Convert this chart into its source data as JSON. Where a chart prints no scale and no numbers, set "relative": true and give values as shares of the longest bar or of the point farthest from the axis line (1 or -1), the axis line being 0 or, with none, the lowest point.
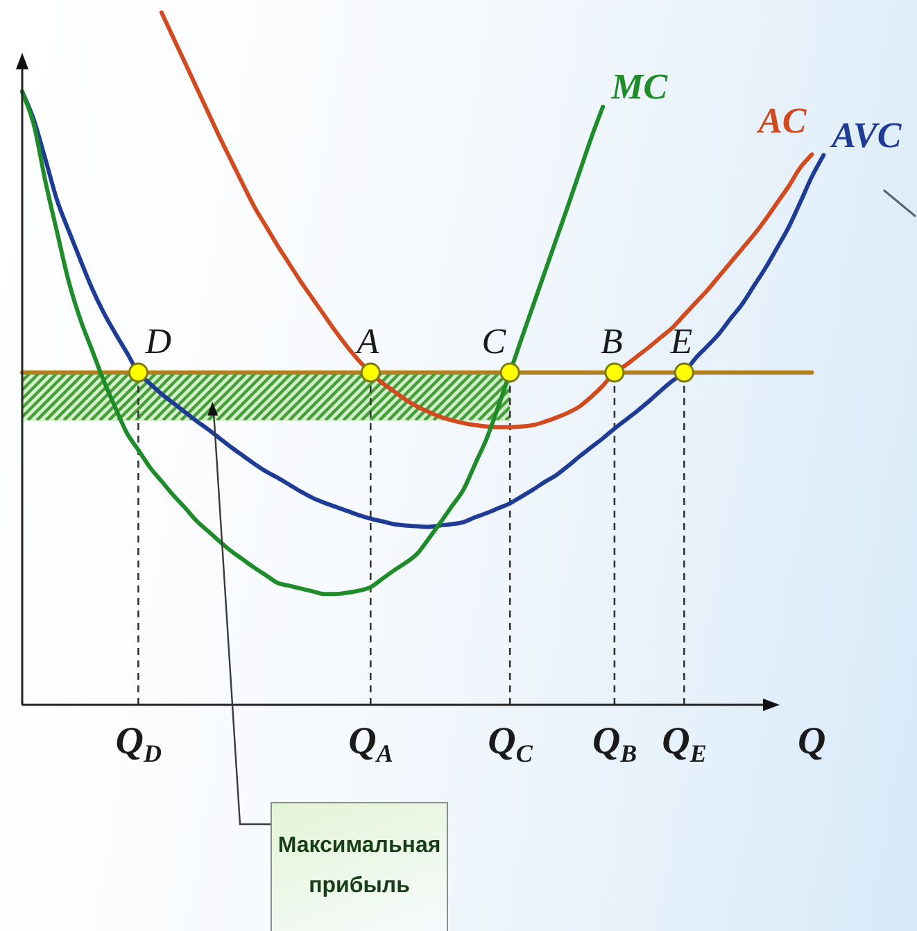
{
  "chart_data": {
    "type": "line",
    "relative": true,
    "legend": false,
    "xlabel": "Q",
    "categories": [
      null,
      null,
      null,
      null,
      null,
      null,
      null,
      null,
      null,
      null,
      "Q$_{D}$",
      null,
      null,
      null,
      null,
      null,
      null,
      null,
      null,
      null,
      null,
      null,
      null,
      null,
      null,
      null,
      null,
      null,
      null,
      null,
      "Q$_{A}$",
      null,
      null,
      null,
      null,
      null,
      null,
      null,
      null,
      null,
      null,
      null,
      "Q$_{C}$",
      null,
      null,
      null,
      null,
      null,
      null,
      null,
      null,
      "Q$_{B}$",
      null,
      null,
      null,
      null,
      null,
      "Q$_{E}$",
      null,
      null,
      null,
      null,
      null,
      null,
      null,
      null,
      null,
      null,
      null,
      null,
      null
    ],
    "series": [
      {
        "name": "MC",
        "color": "#1e8c28",
        "values": [
          0.886,
          0.838,
          0.756,
          0.683,
          0.612,
          0.557,
          0.513,
          0.469,
          0.43,
          0.393,
          0.368,
          0.343,
          0.323,
          0.303,
          0.285,
          0.266,
          0.251,
          0.236,
          0.222,
          0.21,
          0.198,
          0.187,
          0.176,
          0.172,
          0.168,
          0.164,
          0.16,
          0.16,
          0.162,
          0.165,
          0.17,
          0.182,
          0.194,
          0.205,
          0.218,
          0.24,
          0.263,
          0.287,
          0.311,
          0.348,
          0.385,
          0.431,
          0.48,
          0.529,
          0.577,
          0.625,
          0.673,
          0.721,
          0.77,
          0.819,
          0.864,
          null,
          null,
          null,
          null,
          null,
          null,
          null,
          null,
          null,
          null,
          null,
          null,
          null,
          null,
          null,
          null,
          null,
          null,
          null,
          null
        ]
      },
      {
        "name": "AC",
        "color": "#d24a1e",
        "values": [
          null,
          null,
          null,
          null,
          null,
          null,
          null,
          null,
          null,
          null,
          null,
          null,
          1.0,
          0.964,
          0.928,
          0.892,
          0.856,
          0.82,
          0.786,
          0.752,
          0.719,
          0.691,
          0.663,
          0.637,
          0.611,
          0.587,
          0.563,
          0.539,
          0.517,
          0.497,
          0.48,
          0.465,
          0.453,
          0.441,
          0.431,
          0.423,
          0.416,
          0.411,
          0.407,
          0.404,
          0.402,
          0.401,
          0.401,
          0.402,
          0.404,
          0.409,
          0.415,
          0.422,
          0.431,
          0.445,
          0.461,
          0.48,
          0.491,
          0.504,
          0.517,
          0.531,
          0.545,
          0.563,
          0.581,
          0.599,
          0.619,
          0.639,
          0.659,
          0.679,
          0.701,
          0.725,
          0.749,
          0.776,
          0.795,
          null,
          null
        ]
      },
      {
        "name": "AVC",
        "color": "#1e3c96",
        "values": [
          0.886,
          0.845,
          0.788,
          0.729,
          0.685,
          0.643,
          0.602,
          0.567,
          0.537,
          0.509,
          0.48,
          0.464,
          0.449,
          0.436,
          0.423,
          0.41,
          0.398,
          0.385,
          0.372,
          0.36,
          0.348,
          0.337,
          0.328,
          0.318,
          0.308,
          0.299,
          0.292,
          0.286,
          0.28,
          0.274,
          0.269,
          0.265,
          0.261,
          0.259,
          0.258,
          0.257,
          0.259,
          0.261,
          0.264,
          0.271,
          0.277,
          0.284,
          0.291,
          0.301,
          0.311,
          0.322,
          0.332,
          0.345,
          0.359,
          0.372,
          0.385,
          0.399,
          0.412,
          0.425,
          0.439,
          0.454,
          0.468,
          0.48,
          0.501,
          0.518,
          0.536,
          0.558,
          0.579,
          0.605,
          0.631,
          0.66,
          0.69,
          0.726,
          0.763,
          0.794,
          null
        ]
      },
      {
        "color": "#b08020",
        "values": [
          0.48,
          0.48,
          0.48,
          0.48,
          0.48,
          0.48,
          0.48,
          0.48,
          0.48,
          0.48,
          0.48,
          0.48,
          0.48,
          0.48,
          0.48,
          0.48,
          0.48,
          0.48,
          0.48,
          0.48,
          0.48,
          0.48,
          0.48,
          0.48,
          0.48,
          0.48,
          0.48,
          0.48,
          0.48,
          0.48,
          0.48,
          0.48,
          0.48,
          0.48,
          0.48,
          0.48,
          0.48,
          0.48,
          0.48,
          0.48,
          0.48,
          0.48,
          0.48,
          0.48,
          0.48,
          0.48,
          0.48,
          0.48,
          0.48,
          0.48,
          0.48,
          0.48,
          0.48,
          0.48,
          0.48,
          0.48,
          0.48,
          0.48,
          0.48,
          0.48,
          0.48,
          0.48,
          0.48,
          0.48,
          0.48,
          0.48,
          0.48,
          0.48,
          0.48,
          null,
          null
        ],
        "lower": [
          0.41,
          0.41,
          0.41,
          0.41,
          0.41,
          0.41,
          0.41,
          0.41,
          0.41,
          0.41,
          0.41,
          0.41,
          0.41,
          0.41,
          0.41,
          0.41,
          0.41,
          0.41,
          0.41,
          0.41,
          0.41,
          0.41,
          0.41,
          0.41,
          0.41,
          0.41,
          0.41,
          0.41,
          0.41,
          0.41,
          0.41,
          0.41,
          0.41,
          0.41,
          0.41,
          0.41,
          0.41,
          0.41,
          0.41,
          0.41,
          0.41,
          0.41,
          0.41,
          null,
          null,
          null,
          null,
          null,
          null,
          null,
          null,
          null,
          null,
          null,
          null,
          null,
          null,
          null,
          null,
          null,
          null,
          null,
          null,
          null,
          null,
          null,
          null,
          null,
          null,
          null,
          null
        ],
        "upper": [
          0.48,
          0.48,
          0.48,
          0.48,
          0.48,
          0.48,
          0.48,
          0.48,
          0.48,
          0.48,
          0.48,
          0.48,
          0.48,
          0.48,
          0.48,
          0.48,
          0.48,
          0.48,
          0.48,
          0.48,
          0.48,
          0.48,
          0.48,
          0.48,
          0.48,
          0.48,
          0.48,
          0.48,
          0.48,
          0.48,
          0.48,
          0.48,
          0.48,
          0.48,
          0.48,
          0.48,
          0.48,
          0.48,
          0.48,
          0.48,
          0.48,
          0.48,
          0.48,
          null,
          null,
          null,
          null,
          null,
          null,
          null,
          null,
          null,
          null,
          null,
          null,
          null,
          null,
          null,
          null,
          null,
          null,
          null,
          null,
          null,
          null,
          null,
          null,
          null,
          null,
          null,
          null
        ]
      },
      {
        "type": "line",
        "color": "#333333",
        "line_style": "dashed",
        "x": [
          "Q$_{D}$",
          "Q$_{D}$"
        ],
        "values": [
          0,
          0.48
        ]
      },
      {
        "type": "line",
        "color": "#333333",
        "line_style": "dashed",
        "x": [
          "Q$_{A}$",
          "Q$_{A}$"
        ],
        "values": [
          0,
          0.48
        ]
      },
      {
        "type": "line",
        "color": "#333333",
        "line_style": "dashed",
        "x": [
          "Q$_{C}$",
          "Q$_{C}$"
        ],
        "values": [
          0,
          0.48
        ]
      },
      {
        "type": "line",
        "color": "#333333",
        "line_style": "dashed",
        "x": [
          "Q$_{B}$",
          "Q$_{B}$"
        ],
        "values": [
          0,
          0.48
        ]
      },
      {
        "type": "line",
        "color": "#333333",
        "line_style": "dashed",
        "x": [
          "Q$_{E}$",
          "Q$_{E}$"
        ],
        "values": [
          0,
          0.48
        ]
      },
      {
        "type": "scatter",
        "color": "#ffff00",
        "marker": "circle",
        "x": [
          "Q$_{D}$",
          "Q$_{A}$",
          "Q$_{C}$",
          "Q$_{B}$",
          "Q$_{E}$"
        ],
        "values": [
          0.48,
          0.48,
          0.48,
          0.48,
          0.48
        ]
      }
    ],
    "annotations": [
      {
        "text": "D",
        "x": "Q$_{D}$",
        "y": 0.48
      },
      {
        "text": "A",
        "x": "Q$_{A}$",
        "y": 0.48
      },
      {
        "text": "C",
        "x": "Q$_{C}$",
        "y": 0.48
      },
      {
        "text": "B",
        "x": "Q$_{B}$",
        "y": 0.48
      },
      {
        "text": "E",
        "x": "Q$_{E}$",
        "y": 0.48
      },
      "Максимальная прибыль"
    ]
  }
}
